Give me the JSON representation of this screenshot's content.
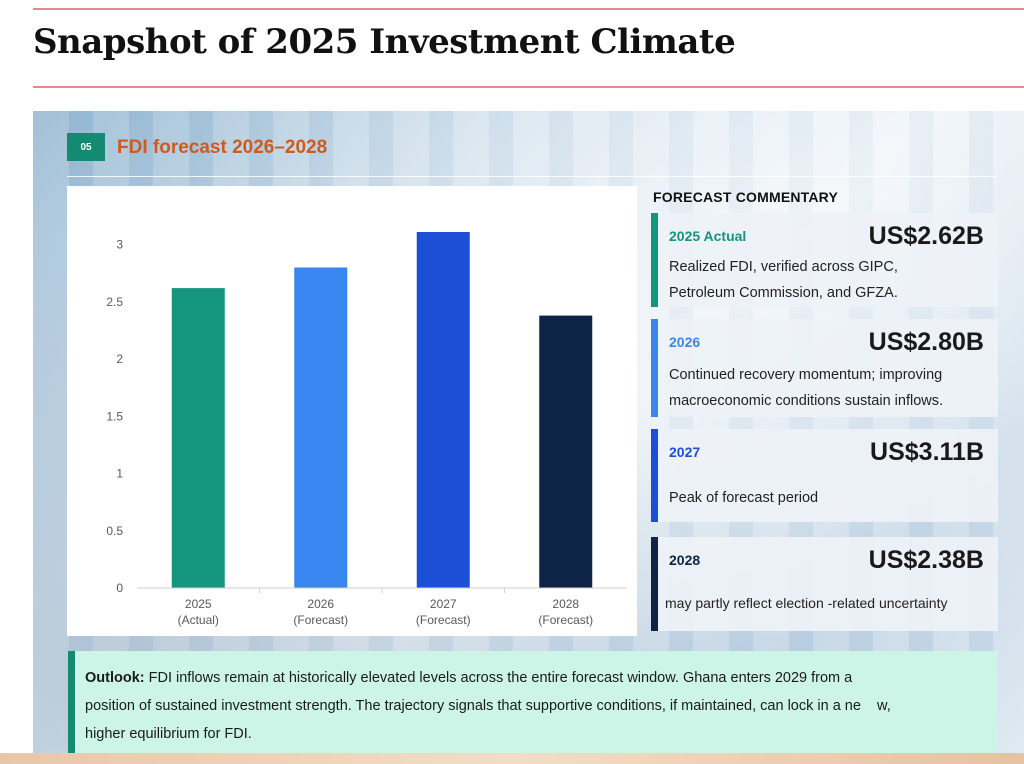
{
  "page": {
    "title": "Snapshot of 2025 Investment Climate"
  },
  "section": {
    "number": "05",
    "title": "FDI forecast 2026–2028"
  },
  "chart_data": {
    "type": "bar",
    "categories": [
      "2025\n(Actual)",
      "2026\n(Forecast)",
      "2027\n(Forecast)",
      "2028\n(Forecast)"
    ],
    "category_lines": [
      [
        "2025",
        "(Actual)"
      ],
      [
        "2026",
        "(Forecast)"
      ],
      [
        "2027",
        "(Forecast)"
      ],
      [
        "2028",
        "(Forecast)"
      ]
    ],
    "values": [
      2.62,
      2.8,
      3.11,
      2.38
    ],
    "bar_colors": [
      "#14957d",
      "#3a86f0",
      "#1d4fd6",
      "#0d2447"
    ],
    "ylim": [
      0,
      3.25
    ],
    "yticks": [
      0,
      0.5,
      1,
      1.5,
      2,
      2.5,
      3
    ],
    "ytick_labels": [
      "0",
      "0.5",
      "1",
      "1.5",
      "2",
      "2.5",
      "3"
    ],
    "grid": false,
    "title": "",
    "xlabel": "",
    "ylabel": ""
  },
  "commentary": {
    "heading": "FORECAST COMMENTARY",
    "cards": [
      {
        "year": "2025 Actual",
        "value": "US$2.62B",
        "lines": [
          "Realized FDI, verified across GIPC,",
          "Petroleum Commission, and GFZA."
        ],
        "accent": "#14957d",
        "year_color": "#14957d"
      },
      {
        "year": "2026",
        "value": "US$2.80B",
        "lines": [
          "Continued recovery momentum; improving",
          "macroeconomic conditions sustain inflows."
        ],
        "accent": "#3a86f0",
        "year_color": "#3a86f0"
      },
      {
        "year": "2027",
        "value": "US$3.11B",
        "lines": [
          "Peak of forecast period"
        ],
        "accent": "#1d4fd6",
        "year_color": "#1d4fd6"
      },
      {
        "year": "2028",
        "value": "US$2.38B",
        "lines": [
          "may partly reflect election -related uncertainty"
        ],
        "accent": "#0d2447",
        "year_color": "#0d2447"
      }
    ]
  },
  "outlook": {
    "label": "Outlook:",
    "lines": [
      " FDI inflows remain at historically elevated levels across the entire forecast window. Ghana enters 2029 from a",
      "position of sustained investment strength. The trajectory signals that supportive conditions, if maintained, can lock in a ne    w,",
      "higher equilibrium for FDI."
    ]
  }
}
